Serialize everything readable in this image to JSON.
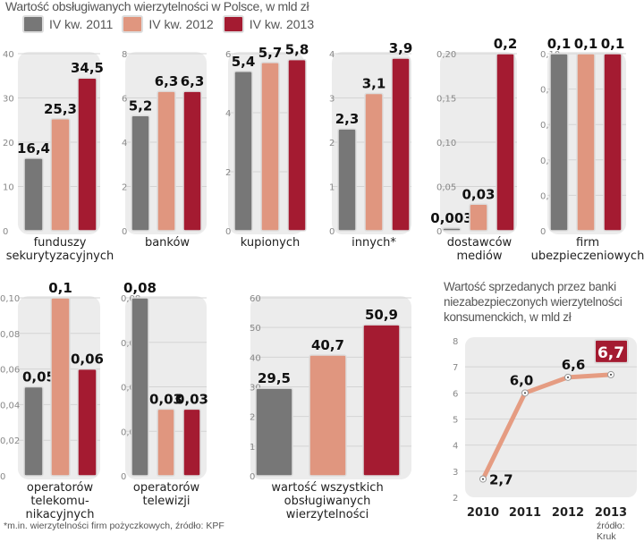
{
  "title": "Wartość obsługiwanych wierzytelności w Polsce, w mld zł",
  "colors": {
    "2011": "#777777",
    "2012": "#e0967f",
    "2013": "#a41b31",
    "panel_bg": "#ececec",
    "line": "#e59c82"
  },
  "legend": [
    {
      "label": "IV kw. 2011",
      "color": "#777777"
    },
    {
      "label": "IV kw. 2012",
      "color": "#e0967f"
    },
    {
      "label": "IV kw. 2013",
      "color": "#a41b31"
    }
  ],
  "chart_data": [
    {
      "type": "bar",
      "category": [
        "funduszy",
        "sekurytyzacyjnych"
      ],
      "ylim": [
        0,
        40
      ],
      "ticks": [
        "0",
        "10",
        "20",
        "30",
        "40"
      ],
      "values": [
        16.4,
        25.3,
        34.5
      ],
      "labels": [
        "16,4",
        "25,3",
        "34,5"
      ]
    },
    {
      "type": "bar",
      "category": [
        "banków"
      ],
      "ylim": [
        0,
        8
      ],
      "ticks": [
        "0",
        "2",
        "4",
        "6",
        "8"
      ],
      "values": [
        5.2,
        6.3,
        6.3
      ],
      "labels": [
        "5,2",
        "6,3",
        "6,3"
      ]
    },
    {
      "type": "bar",
      "category": [
        "kupionych"
      ],
      "ylim": [
        0,
        6
      ],
      "ticks": [
        "0",
        "2",
        "4",
        "6"
      ],
      "values": [
        5.4,
        5.7,
        5.8
      ],
      "labels": [
        "5,4",
        "5,7",
        "5,8"
      ]
    },
    {
      "type": "bar",
      "category": [
        "innych*"
      ],
      "ylim": [
        0,
        4
      ],
      "ticks": [
        "0",
        "1",
        "2",
        "3",
        "4"
      ],
      "values": [
        2.3,
        3.1,
        3.9
      ],
      "labels": [
        "2,3",
        "3,1",
        "3,9"
      ]
    },
    {
      "type": "bar",
      "category": [
        "dostawców",
        "mediów"
      ],
      "ylim": [
        0,
        0.2
      ],
      "ticks": [
        "0",
        "0,05",
        "0,10",
        "0,15",
        "0,20"
      ],
      "values": [
        0.003,
        0.03,
        0.2
      ],
      "labels": [
        "0,003",
        "0,03",
        "0,2"
      ]
    },
    {
      "type": "bar",
      "category": [
        "firm",
        "ubezpieczeniowych"
      ],
      "ylim": [
        0,
        0.1
      ],
      "ticks": [
        "0",
        "0,02",
        "0,04",
        "0,06",
        "0,08",
        "0,10"
      ],
      "values": [
        0.1,
        0.1,
        0.1
      ],
      "labels": [
        "0,1",
        "0,1",
        "0,1"
      ]
    },
    {
      "type": "bar",
      "category": [
        "operatorów",
        "telekomu-",
        "nikacyjnych"
      ],
      "ylim": [
        0,
        0.1
      ],
      "ticks": [
        "0",
        "0,02",
        "0,04",
        "0,06",
        "0,08",
        "0,10"
      ],
      "values": [
        0.05,
        0.1,
        0.06
      ],
      "labels": [
        "0,05",
        "0,1",
        "0,06"
      ]
    },
    {
      "type": "bar",
      "category": [
        "operatorów",
        "telewizji"
      ],
      "ylim": [
        0,
        0.08
      ],
      "ticks": [
        "0",
        "0,02",
        "0,04",
        "0,06",
        "0,08"
      ],
      "values": [
        0.08,
        0.03,
        0.03
      ],
      "labels": [
        "0,08",
        "0,03",
        "0,03"
      ]
    },
    {
      "type": "bar",
      "category": [
        "wartość wszystkich",
        "obsługiwanych",
        "wierzytelności"
      ],
      "ylim": [
        0,
        60
      ],
      "ticks": [
        "0",
        "10",
        "20",
        "30",
        "40",
        "50",
        "60"
      ],
      "values": [
        29.5,
        40.7,
        50.9
      ],
      "labels": [
        "29,5",
        "40,7",
        "50,9"
      ]
    },
    {
      "type": "line",
      "title": "Wartość sprzedanych przez banki niezabezpieczonych wierzytelności konsumenckich, w mld zł",
      "x": [
        "2010",
        "2011",
        "2012",
        "2013"
      ],
      "values": [
        2.7,
        6.0,
        6.6,
        6.7
      ],
      "labels": [
        "2,7",
        "6,0",
        "6,6",
        "6,7"
      ],
      "ylim": [
        2,
        8
      ],
      "ticks": [
        "2",
        "3",
        "4",
        "5",
        "6",
        "7",
        "8"
      ],
      "grid": true,
      "highlight_last": true
    }
  ],
  "footnote": "*m.in. wierzytelności firm pożyczkowych, źródło: KPF",
  "source": "źródło: Kruk"
}
